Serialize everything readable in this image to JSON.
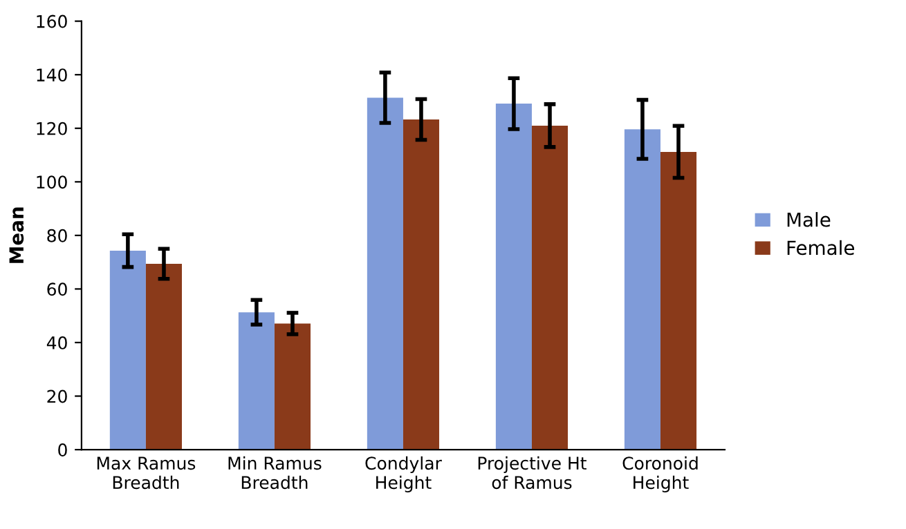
{
  "chart_data": {
    "type": "bar",
    "ylabel": "Mean",
    "categories": [
      "Max Ramus\nBreadth",
      "Min Ramus\nBreadth",
      "Condylar\nHeight",
      "Projective Ht\nof Ramus",
      "Coronoid\nHeight"
    ],
    "series": [
      {
        "name": "Male",
        "color": "#7f9bd9",
        "values": [
          74.3,
          51.3,
          131.4,
          129.2,
          119.6
        ],
        "errors": [
          6.1,
          4.6,
          9.4,
          9.5,
          11.0
        ]
      },
      {
        "name": "Female",
        "color": "#8a3a1a",
        "values": [
          69.4,
          47.1,
          123.3,
          121.0,
          111.2
        ],
        "errors": [
          5.6,
          4.0,
          7.6,
          8.0,
          9.7
        ]
      }
    ],
    "ylim": [
      0,
      160
    ],
    "yticks": [
      0,
      20,
      40,
      60,
      80,
      100,
      120,
      140,
      160
    ],
    "grid": false,
    "legend": "right"
  }
}
